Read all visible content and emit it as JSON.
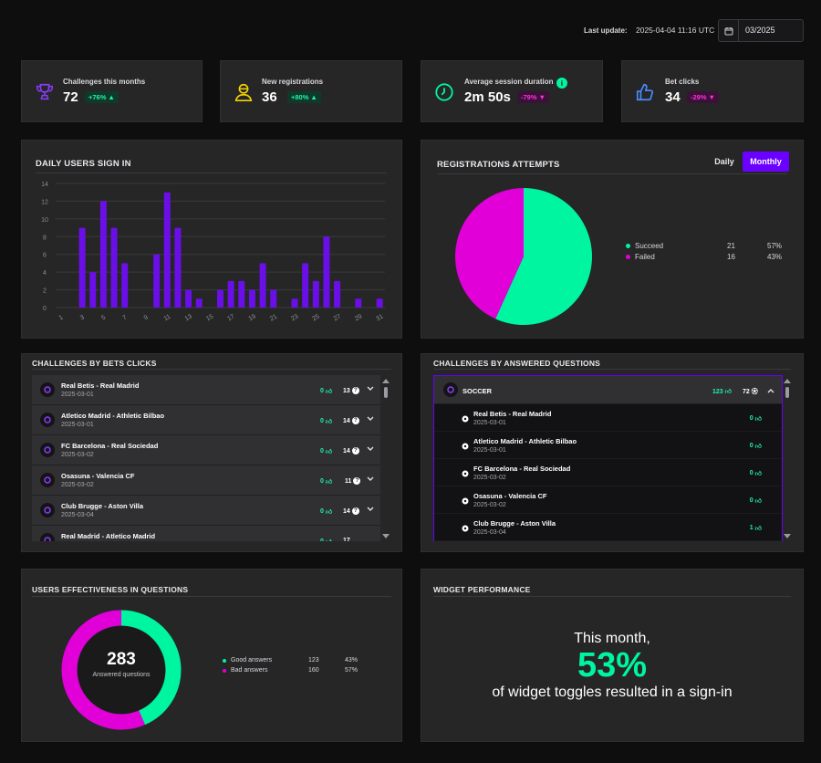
{
  "header": {
    "last_update_label": "Last update:",
    "last_update_value": "2025-04-04 11:16 UTC",
    "month_value": "03/2025"
  },
  "colors": {
    "accent_purple": "#6a00ff",
    "bar_purple": "#6a0fe8",
    "green": "#00f5a0",
    "magenta": "#e100d8",
    "card_bg": "#262627"
  },
  "kpis": [
    {
      "title": "Challenges this months",
      "value": "72",
      "delta": "+76%",
      "trend": "up",
      "icon": "trophy-icon"
    },
    {
      "title": "New registrations",
      "value": "36",
      "delta": "+80%",
      "trend": "up",
      "icon": "user-icon"
    },
    {
      "title": "Average session duration",
      "value": "2m 50s",
      "delta": "-79%",
      "trend": "down",
      "icon": "clock-icon"
    },
    {
      "title": "Bet clicks",
      "value": "34",
      "delta": "-29%",
      "trend": "down",
      "icon": "thumbs-up-icon"
    }
  ],
  "daily_signin": {
    "title": "DAILY USERS SIGN IN"
  },
  "registrations": {
    "title": "REGISTRATIONS ATTEMPTS",
    "tabs": [
      "Daily",
      "Monthly"
    ],
    "active_tab": "Monthly",
    "legend": [
      {
        "label": "Succeed",
        "count": "21",
        "pct": "57%",
        "color": "#00f5a0"
      },
      {
        "label": "Failed",
        "count": "16",
        "pct": "43%",
        "color": "#e100d8"
      }
    ]
  },
  "bets_clicks": {
    "title": "CHALLENGES BY BETS CLICKS",
    "rows": [
      {
        "name": "Real Betis - Real Madrid",
        "date": "2025-03-01",
        "clicks": "0",
        "questions": "13"
      },
      {
        "name": "Atletico Madrid - Athletic Bilbao",
        "date": "2025-03-01",
        "clicks": "0",
        "questions": "14"
      },
      {
        "name": "FC Barcelona - Real Sociedad",
        "date": "2025-03-02",
        "clicks": "0",
        "questions": "14"
      },
      {
        "name": "Osasuna - Valencia CF",
        "date": "2025-03-02",
        "clicks": "0",
        "questions": "11"
      },
      {
        "name": "Club Brugge - Aston Villa",
        "date": "2025-03-04",
        "clicks": "0",
        "questions": "14"
      },
      {
        "name": "Real Madrid - Atletico Madrid",
        "date": "",
        "clicks": "0",
        "questions": "17"
      }
    ]
  },
  "answered": {
    "title": "CHALLENGES BY ANSWERED QUESTIONS",
    "group": {
      "name": "SOCCER",
      "answers": "123",
      "count": "72"
    },
    "rows": [
      {
        "name": "Real Betis - Real Madrid",
        "date": "2025-03-01",
        "answers": "0"
      },
      {
        "name": "Atletico Madrid - Athletic Bilbao",
        "date": "2025-03-01",
        "answers": "0"
      },
      {
        "name": "FC Barcelona - Real Sociedad",
        "date": "2025-03-02",
        "answers": "0"
      },
      {
        "name": "Osasuna - Valencia CF",
        "date": "2025-03-02",
        "answers": "0"
      },
      {
        "name": "Club Brugge - Aston Villa",
        "date": "2025-03-04",
        "answers": "1"
      }
    ]
  },
  "effectiveness": {
    "title": "USERS EFFECTIVENESS IN QUESTIONS",
    "total": "283",
    "total_label": "Answered questions",
    "legend": [
      {
        "label": "Good answers",
        "count": "123",
        "pct": "43%",
        "color": "#00f5a0"
      },
      {
        "label": "Bad answers",
        "count": "160",
        "pct": "57%",
        "color": "#e100d8"
      }
    ]
  },
  "widget": {
    "title": "WIDGET PERFORMANCE",
    "line1": "This month,",
    "percent": "53%",
    "line2": "of widget toggles resulted in a sign-in"
  },
  "chart_data": [
    {
      "type": "bar",
      "title": "DAILY USERS SIGN IN",
      "x": [
        1,
        2,
        3,
        4,
        5,
        6,
        7,
        8,
        9,
        10,
        11,
        12,
        13,
        14,
        15,
        16,
        17,
        18,
        19,
        20,
        21,
        22,
        23,
        24,
        25,
        26,
        27,
        28,
        29,
        30,
        31
      ],
      "values": [
        0,
        0,
        9,
        4,
        12,
        9,
        5,
        0,
        0,
        6,
        13,
        9,
        2,
        1,
        0,
        2,
        3,
        3,
        2,
        5,
        2,
        0,
        1,
        5,
        3,
        8,
        3,
        0,
        1,
        0,
        1
      ],
      "x_tick_labels": [
        "1",
        "3",
        "5",
        "7",
        "9",
        "11",
        "13",
        "15",
        "17",
        "19",
        "21",
        "23",
        "25",
        "27",
        "29",
        "31"
      ],
      "y_ticks": [
        0,
        2,
        4,
        6,
        8,
        10,
        12,
        14
      ],
      "ylim": [
        0,
        14
      ],
      "grid": true,
      "color": "#6a0fe8"
    },
    {
      "type": "pie",
      "title": "REGISTRATIONS ATTEMPTS",
      "labels": [
        "Succeed",
        "Failed"
      ],
      "values": [
        21,
        16
      ],
      "colors": [
        "#00f5a0",
        "#e100d8"
      ]
    },
    {
      "type": "pie",
      "title": "USERS EFFECTIVENESS IN QUESTIONS",
      "donut": true,
      "labels": [
        "Good answers",
        "Bad answers"
      ],
      "values": [
        123,
        160
      ],
      "colors": [
        "#00f5a0",
        "#e100d8"
      ]
    }
  ]
}
